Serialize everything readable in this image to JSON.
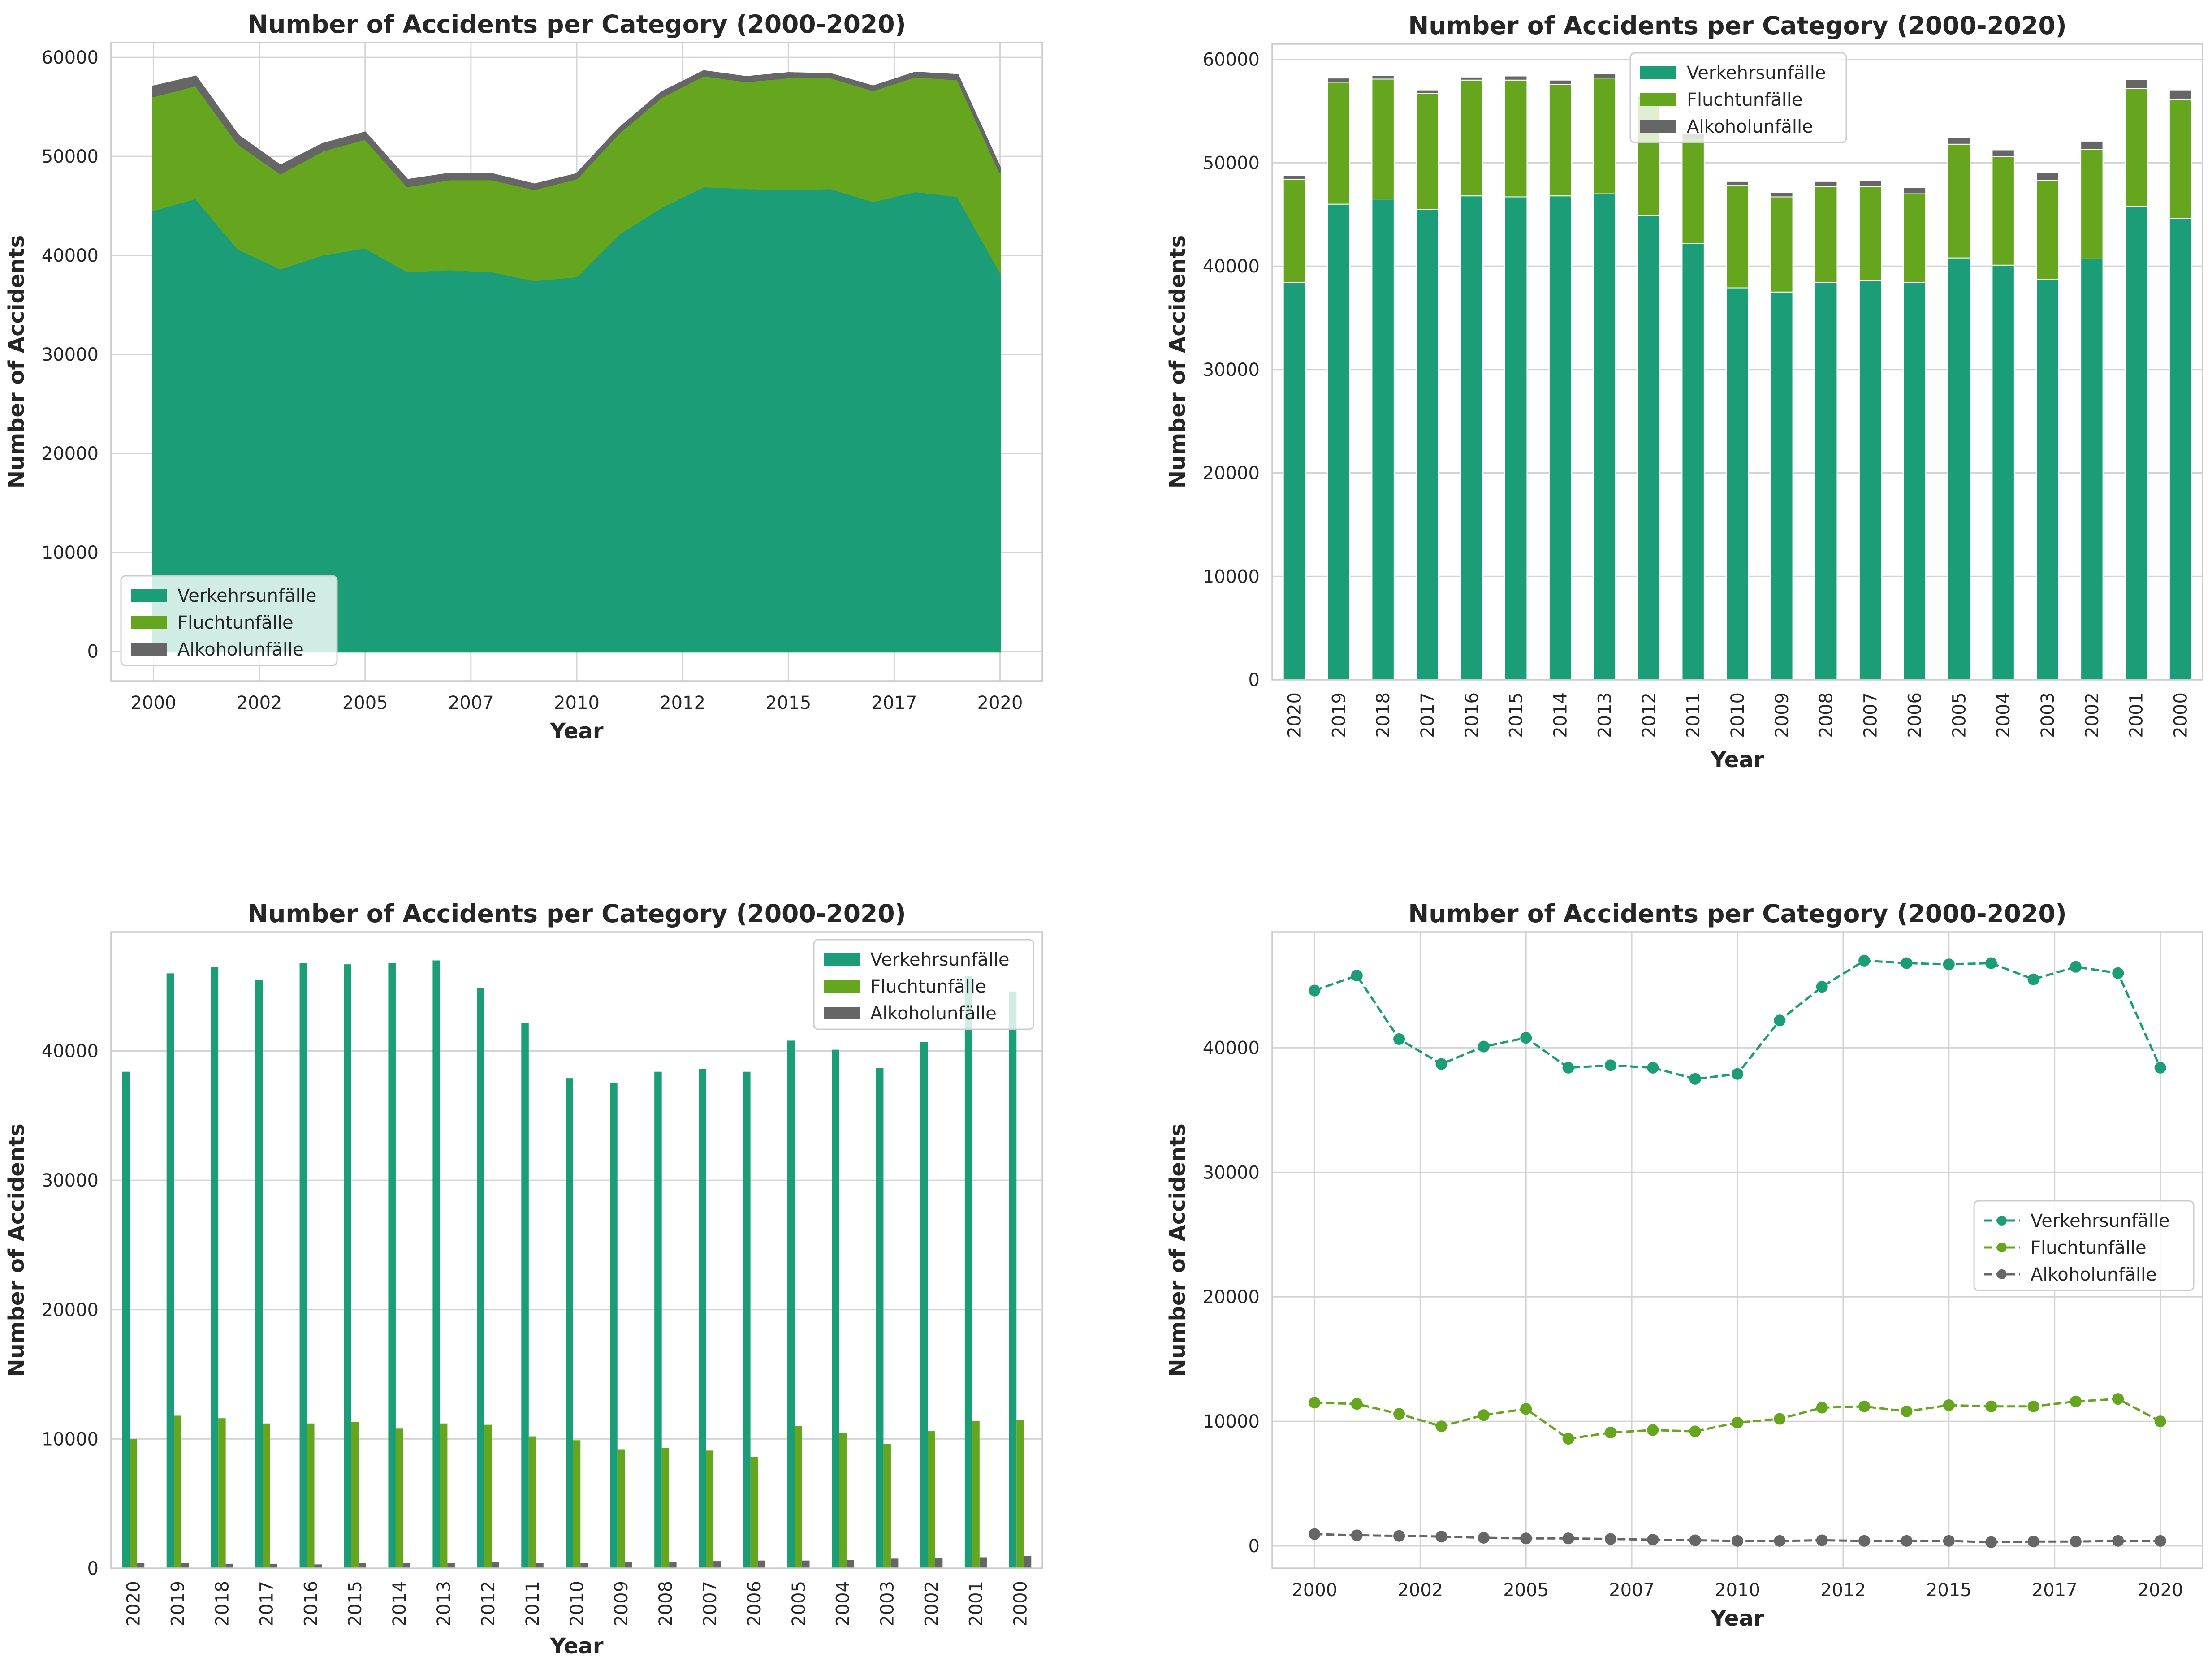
{
  "colors": {
    "verkehr": "#1b9e77",
    "flucht": "#66a61e",
    "alkohol": "#666666",
    "grid": "#d4d4d4",
    "frame": "#cccccc",
    "text": "#262626"
  },
  "chart_data": [
    {
      "type": "area",
      "stacked": true,
      "title": "Number of Accidents per Category (2000-2020)",
      "xlabel": "Year",
      "ylabel": "Number of Accidents",
      "x": [
        2000,
        2001,
        2002,
        2003,
        2004,
        2005,
        2006,
        2007,
        2008,
        2009,
        2010,
        2011,
        2012,
        2013,
        2014,
        2015,
        2016,
        2017,
        2018,
        2019,
        2020
      ],
      "xticks": [
        "2000",
        "2002",
        "2005",
        "2007",
        "2010",
        "2012",
        "2015",
        "2017",
        "2020"
      ],
      "xtick_positions": [
        2000,
        2002.5,
        2005,
        2007.5,
        2010,
        2012.5,
        2015,
        2017.5,
        2020
      ],
      "yticks": [
        0,
        10000,
        20000,
        30000,
        40000,
        50000,
        60000
      ],
      "ylim": [
        -3000,
        61500
      ],
      "xlim": [
        1999,
        2021
      ],
      "legend": "lower-left",
      "grid": true,
      "series": [
        {
          "name": "Verkehrsunfälle",
          "values": [
            44600,
            45800,
            40700,
            38700,
            40100,
            40800,
            38400,
            38600,
            38400,
            37500,
            37900,
            42200,
            44900,
            47000,
            46800,
            46700,
            46800,
            45500,
            46500,
            46000,
            38400
          ]
        },
        {
          "name": "Fluchtunfälle",
          "values": [
            11500,
            11400,
            10600,
            9600,
            10500,
            11000,
            8600,
            9100,
            9300,
            9200,
            9900,
            10200,
            11100,
            11200,
            10800,
            11300,
            11200,
            11200,
            11600,
            11800,
            10000
          ]
        },
        {
          "name": "Alkoholunfälle",
          "values": [
            950,
            850,
            800,
            750,
            650,
            600,
            600,
            550,
            500,
            450,
            400,
            400,
            450,
            400,
            400,
            400,
            300,
            350,
            350,
            400,
            400
          ]
        }
      ]
    },
    {
      "type": "bar",
      "stacked": true,
      "title": "Number of Accidents per Category (2000-2020)",
      "xlabel": "Year",
      "ylabel": "Number of Accidents",
      "categories": [
        "2020",
        "2019",
        "2018",
        "2017",
        "2016",
        "2015",
        "2014",
        "2013",
        "2012",
        "2011",
        "2010",
        "2009",
        "2008",
        "2007",
        "2006",
        "2005",
        "2004",
        "2003",
        "2002",
        "2001",
        "2000"
      ],
      "yticks": [
        0,
        10000,
        20000,
        30000,
        40000,
        50000,
        60000
      ],
      "ylim": [
        0,
        61500
      ],
      "legend": "upper-center",
      "grid": true,
      "series": [
        {
          "name": "Verkehrsunfälle",
          "values": [
            38400,
            46000,
            46500,
            45500,
            46800,
            46700,
            46800,
            47000,
            44900,
            42200,
            37900,
            37500,
            38400,
            38600,
            38400,
            40800,
            40100,
            38700,
            40700,
            45800,
            44600
          ]
        },
        {
          "name": "Fluchtunfälle",
          "values": [
            10000,
            11800,
            11600,
            11200,
            11200,
            11300,
            10800,
            11200,
            11100,
            10200,
            9900,
            9200,
            9300,
            9100,
            8600,
            11000,
            10500,
            9600,
            10600,
            11400,
            11500
          ]
        },
        {
          "name": "Alkoholunfälle",
          "values": [
            400,
            400,
            350,
            350,
            300,
            400,
            400,
            400,
            450,
            400,
            400,
            450,
            500,
            550,
            600,
            600,
            650,
            750,
            800,
            850,
            950
          ]
        }
      ]
    },
    {
      "type": "bar",
      "stacked": false,
      "title": "Number of Accidents per Category (2000-2020)",
      "xlabel": "Year",
      "ylabel": "Number of Accidents",
      "categories": [
        "2020",
        "2019",
        "2018",
        "2017",
        "2016",
        "2015",
        "2014",
        "2013",
        "2012",
        "2011",
        "2010",
        "2009",
        "2008",
        "2007",
        "2006",
        "2005",
        "2004",
        "2003",
        "2002",
        "2001",
        "2000"
      ],
      "yticks": [
        0,
        10000,
        20000,
        30000,
        40000
      ],
      "ylim": [
        0,
        49200
      ],
      "legend": "upper-right",
      "grid": true,
      "series": [
        {
          "name": "Verkehrsunfälle",
          "values": [
            38400,
            46000,
            46500,
            45500,
            46800,
            46700,
            46800,
            47000,
            44900,
            42200,
            37900,
            37500,
            38400,
            38600,
            38400,
            40800,
            40100,
            38700,
            40700,
            45800,
            44600
          ]
        },
        {
          "name": "Fluchtunfälle",
          "values": [
            10000,
            11800,
            11600,
            11200,
            11200,
            11300,
            10800,
            11200,
            11100,
            10200,
            9900,
            9200,
            9300,
            9100,
            8600,
            11000,
            10500,
            9600,
            10600,
            11400,
            11500
          ]
        },
        {
          "name": "Alkoholunfälle",
          "values": [
            400,
            400,
            350,
            350,
            300,
            400,
            400,
            400,
            450,
            400,
            400,
            450,
            500,
            550,
            600,
            600,
            650,
            750,
            800,
            850,
            950
          ]
        }
      ]
    },
    {
      "type": "line",
      "title": "Number of Accidents per Category (2000-2020)",
      "xlabel": "Year",
      "ylabel": "Number of Accidents",
      "x": [
        2000,
        2001,
        2002,
        2003,
        2004,
        2005,
        2006,
        2007,
        2008,
        2009,
        2010,
        2011,
        2012,
        2013,
        2014,
        2015,
        2016,
        2017,
        2018,
        2019,
        2020
      ],
      "xticks": [
        "2000",
        "2002",
        "2005",
        "2007",
        "2010",
        "2012",
        "2015",
        "2017",
        "2020"
      ],
      "xtick_positions": [
        2000,
        2002.5,
        2005,
        2007.5,
        2010,
        2012.5,
        2015,
        2017.5,
        2020
      ],
      "yticks": [
        0,
        10000,
        20000,
        30000,
        40000
      ],
      "ylim": [
        -1800,
        49300
      ],
      "xlim": [
        1999,
        2021
      ],
      "legend": "center-right",
      "linestyle": "dashed",
      "marker": "circle",
      "grid": true,
      "series": [
        {
          "name": "Verkehrsunfälle",
          "values": [
            44600,
            45800,
            40700,
            38700,
            40100,
            40800,
            38400,
            38600,
            38400,
            37500,
            37900,
            42200,
            44900,
            47000,
            46800,
            46700,
            46800,
            45500,
            46500,
            46000,
            38400
          ]
        },
        {
          "name": "Fluchtunfälle",
          "values": [
            11500,
            11400,
            10600,
            9600,
            10500,
            11000,
            8600,
            9100,
            9300,
            9200,
            9900,
            10200,
            11100,
            11200,
            10800,
            11300,
            11200,
            11200,
            11600,
            11800,
            10000
          ]
        },
        {
          "name": "Alkoholunfälle",
          "values": [
            950,
            850,
            800,
            750,
            650,
            600,
            600,
            550,
            500,
            450,
            400,
            400,
            450,
            400,
            400,
            400,
            300,
            350,
            350,
            400,
            400
          ]
        }
      ]
    }
  ]
}
